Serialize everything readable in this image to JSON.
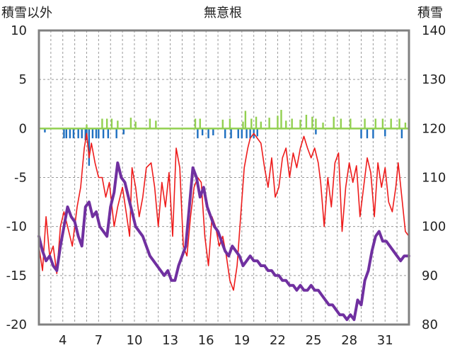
{
  "chart_data": {
    "type": "line",
    "title": "無意根",
    "y_left_label": "積雪以外",
    "y_right_label": "積雪",
    "y_left_range": [
      -20,
      10
    ],
    "y_right_range": [
      80,
      140
    ],
    "y_left_ticks": [
      "10",
      "5",
      "0",
      "-5",
      "-10",
      "-15",
      "-20"
    ],
    "y_right_ticks": [
      "140",
      "130",
      "120",
      "110",
      "100",
      "90",
      "80"
    ],
    "x_range": [
      2,
      33
    ],
    "x_ticks": [
      "4",
      "7",
      "10",
      "13",
      "16",
      "19",
      "22",
      "25",
      "28",
      "31"
    ],
    "grid": "dashed",
    "colors": {
      "temperature": "#ee1c1c",
      "snow_depth": "#7030a0",
      "positive_bars": "#92d050",
      "negative_bars": "#1e6fc0",
      "frame": "#808080"
    },
    "series": [
      {
        "axis": "left",
        "style": "thin-line",
        "values": [
          [
            2.0,
            -12
          ],
          [
            2.3,
            -14.5
          ],
          [
            2.6,
            -9
          ],
          [
            2.9,
            -13
          ],
          [
            3.2,
            -12
          ],
          [
            3.5,
            -14.8
          ],
          [
            3.8,
            -10
          ],
          [
            4.1,
            -8.5
          ],
          [
            4.5,
            -10.5
          ],
          [
            4.8,
            -12
          ],
          [
            5.2,
            -8
          ],
          [
            5.5,
            -6
          ],
          [
            5.8,
            -2
          ],
          [
            6.0,
            -0.5
          ],
          [
            6.2,
            -3
          ],
          [
            6.4,
            -1.5
          ],
          [
            6.7,
            -3.5
          ],
          [
            7.0,
            -5
          ],
          [
            7.3,
            -5
          ],
          [
            7.6,
            -7
          ],
          [
            7.9,
            -5.5
          ],
          [
            8.3,
            -10
          ],
          [
            8.6,
            -8
          ],
          [
            9.0,
            -6
          ],
          [
            9.3,
            -8.5
          ],
          [
            9.6,
            -11
          ],
          [
            9.8,
            -4
          ],
          [
            10.1,
            -6
          ],
          [
            10.4,
            -9
          ],
          [
            10.7,
            -7
          ],
          [
            11.0,
            -4
          ],
          [
            11.4,
            -3.5
          ],
          [
            11.7,
            -6
          ],
          [
            12.0,
            -10
          ],
          [
            12.3,
            -5.5
          ],
          [
            12.6,
            -8
          ],
          [
            12.9,
            -4.5
          ],
          [
            13.2,
            -11
          ],
          [
            13.5,
            -2
          ],
          [
            13.8,
            -4
          ],
          [
            14.1,
            -12
          ],
          [
            14.4,
            -13
          ],
          [
            14.7,
            -9
          ],
          [
            15.0,
            -6
          ],
          [
            15.3,
            -5
          ],
          [
            15.6,
            -5.5
          ],
          [
            15.9,
            -11
          ],
          [
            16.2,
            -14
          ],
          [
            16.5,
            -9
          ],
          [
            16.8,
            -10
          ],
          [
            17.1,
            -12
          ],
          [
            17.4,
            -11
          ],
          [
            17.7,
            -13
          ],
          [
            18.0,
            -15.5
          ],
          [
            18.3,
            -16.5
          ],
          [
            18.6,
            -14
          ],
          [
            18.9,
            -9
          ],
          [
            19.2,
            -4
          ],
          [
            19.5,
            -2
          ],
          [
            19.7,
            -1
          ],
          [
            20.0,
            -0.5
          ],
          [
            20.3,
            -1
          ],
          [
            20.6,
            -1.5
          ],
          [
            20.9,
            -4
          ],
          [
            21.2,
            -6
          ],
          [
            21.5,
            -3
          ],
          [
            21.8,
            -7
          ],
          [
            22.1,
            -6
          ],
          [
            22.4,
            -3
          ],
          [
            22.7,
            -2
          ],
          [
            23.0,
            -5
          ],
          [
            23.3,
            -2.5
          ],
          [
            23.6,
            -4
          ],
          [
            23.9,
            -2
          ],
          [
            24.2,
            -0.8
          ],
          [
            24.5,
            -2
          ],
          [
            24.8,
            -3
          ],
          [
            25.1,
            -2
          ],
          [
            25.4,
            -3.5
          ],
          [
            25.6,
            -5.5
          ],
          [
            25.9,
            -10
          ],
          [
            26.2,
            -5
          ],
          [
            26.5,
            -8
          ],
          [
            26.8,
            -3.5
          ],
          [
            27.1,
            -2.5
          ],
          [
            27.4,
            -10.5
          ],
          [
            27.7,
            -6
          ],
          [
            28.0,
            -3.5
          ],
          [
            28.3,
            -5.5
          ],
          [
            28.6,
            -3.8
          ],
          [
            28.9,
            -9
          ],
          [
            29.2,
            -6
          ],
          [
            29.5,
            -3
          ],
          [
            29.8,
            -4.5
          ],
          [
            30.1,
            -9
          ],
          [
            30.4,
            -3.5
          ],
          [
            30.7,
            -6
          ],
          [
            31.0,
            -4
          ],
          [
            31.3,
            -7.5
          ],
          [
            31.6,
            -8.5
          ],
          [
            31.9,
            -6
          ],
          [
            32.1,
            -3.5
          ],
          [
            32.4,
            -7
          ],
          [
            32.7,
            -10.5
          ],
          [
            33.0,
            -11
          ]
        ]
      },
      {
        "axis": "right",
        "style": "thick-line",
        "values": [
          [
            2.0,
            98
          ],
          [
            2.3,
            95
          ],
          [
            2.6,
            93
          ],
          [
            2.9,
            94
          ],
          [
            3.2,
            92
          ],
          [
            3.5,
            91
          ],
          [
            3.8,
            96
          ],
          [
            4.1,
            100
          ],
          [
            4.4,
            104
          ],
          [
            4.7,
            102
          ],
          [
            5.0,
            101
          ],
          [
            5.3,
            98
          ],
          [
            5.6,
            96
          ],
          [
            5.9,
            104
          ],
          [
            6.2,
            105
          ],
          [
            6.5,
            102
          ],
          [
            6.8,
            103
          ],
          [
            7.1,
            100
          ],
          [
            7.4,
            99
          ],
          [
            7.7,
            98
          ],
          [
            8.0,
            104
          ],
          [
            8.3,
            107
          ],
          [
            8.6,
            113
          ],
          [
            8.9,
            110
          ],
          [
            9.2,
            109
          ],
          [
            9.5,
            106
          ],
          [
            9.8,
            103
          ],
          [
            10.1,
            100
          ],
          [
            10.4,
            99
          ],
          [
            10.7,
            98
          ],
          [
            11.0,
            96
          ],
          [
            11.3,
            94
          ],
          [
            11.6,
            93
          ],
          [
            11.9,
            92
          ],
          [
            12.2,
            91
          ],
          [
            12.5,
            90
          ],
          [
            12.8,
            91
          ],
          [
            13.1,
            89
          ],
          [
            13.4,
            89
          ],
          [
            13.7,
            92
          ],
          [
            14.0,
            94
          ],
          [
            14.3,
            96
          ],
          [
            14.6,
            104
          ],
          [
            14.9,
            112
          ],
          [
            15.2,
            110
          ],
          [
            15.5,
            106
          ],
          [
            15.8,
            108
          ],
          [
            16.1,
            104
          ],
          [
            16.4,
            102
          ],
          [
            16.7,
            100
          ],
          [
            17.0,
            99
          ],
          [
            17.3,
            97
          ],
          [
            17.6,
            95
          ],
          [
            17.9,
            94
          ],
          [
            18.2,
            96
          ],
          [
            18.5,
            95
          ],
          [
            18.8,
            94
          ],
          [
            19.1,
            92
          ],
          [
            19.4,
            93
          ],
          [
            19.7,
            94
          ],
          [
            20.0,
            93
          ],
          [
            20.3,
            93
          ],
          [
            20.6,
            92
          ],
          [
            20.9,
            92
          ],
          [
            21.2,
            91
          ],
          [
            21.5,
            91
          ],
          [
            21.8,
            90
          ],
          [
            22.1,
            90
          ],
          [
            22.4,
            89
          ],
          [
            22.7,
            89
          ],
          [
            23.0,
            88
          ],
          [
            23.3,
            88
          ],
          [
            23.6,
            87
          ],
          [
            23.9,
            88
          ],
          [
            24.2,
            87
          ],
          [
            24.5,
            87
          ],
          [
            24.8,
            88
          ],
          [
            25.1,
            87
          ],
          [
            25.4,
            87
          ],
          [
            25.7,
            86
          ],
          [
            26.0,
            85
          ],
          [
            26.3,
            84
          ],
          [
            26.6,
            84
          ],
          [
            26.9,
            83
          ],
          [
            27.2,
            82
          ],
          [
            27.5,
            82
          ],
          [
            27.8,
            81
          ],
          [
            28.1,
            82
          ],
          [
            28.4,
            81
          ],
          [
            28.7,
            85
          ],
          [
            29.0,
            84
          ],
          [
            29.3,
            89
          ],
          [
            29.6,
            91
          ],
          [
            29.9,
            95
          ],
          [
            30.2,
            98
          ],
          [
            30.5,
            99
          ],
          [
            30.8,
            97
          ],
          [
            31.1,
            97
          ],
          [
            31.4,
            96
          ],
          [
            31.7,
            95
          ],
          [
            32.0,
            94
          ],
          [
            32.3,
            93
          ],
          [
            32.6,
            94
          ],
          [
            33.0,
            94
          ]
        ]
      },
      {
        "axis": "left",
        "style": "bars-up",
        "values": [
          [
            6.0,
            0.4
          ],
          [
            7.3,
            1.0
          ],
          [
            7.7,
            1.0
          ],
          [
            8.1,
            1.0
          ],
          [
            8.6,
            0.8
          ],
          [
            9.7,
            1.1
          ],
          [
            10.1,
            0.7
          ],
          [
            11.3,
            1.0
          ],
          [
            11.8,
            0.8
          ],
          [
            15.1,
            1.0
          ],
          [
            15.5,
            1.0
          ],
          [
            17.4,
            0.9
          ],
          [
            18.0,
            1.0
          ],
          [
            19.1,
            0.7
          ],
          [
            19.3,
            1.8
          ],
          [
            19.8,
            1.0
          ],
          [
            20.2,
            1.2
          ],
          [
            20.6,
            0.7
          ],
          [
            21.3,
            1.1
          ],
          [
            22.0,
            1.3
          ],
          [
            22.3,
            1.9
          ],
          [
            22.7,
            0.8
          ],
          [
            23.2,
            1.0
          ],
          [
            23.9,
            0.9
          ],
          [
            24.4,
            1.4
          ],
          [
            24.9,
            1.2
          ],
          [
            25.2,
            1.0
          ],
          [
            25.8,
            0.6
          ],
          [
            26.7,
            1.2
          ],
          [
            27.3,
            1.0
          ],
          [
            28.1,
            1.0
          ],
          [
            29.3,
            1.0
          ],
          [
            30.2,
            1.0
          ],
          [
            30.8,
            1.0
          ],
          [
            31.5,
            1.0
          ],
          [
            32.2,
            1.0
          ],
          [
            32.7,
            0.6
          ]
        ]
      },
      {
        "axis": "left",
        "style": "bars-down",
        "values": [
          [
            2.5,
            -0.4
          ],
          [
            4.1,
            -1.0
          ],
          [
            4.3,
            -1.0
          ],
          [
            4.6,
            -1.0
          ],
          [
            4.9,
            -1.0
          ],
          [
            5.3,
            -1.0
          ],
          [
            5.6,
            -1.0
          ],
          [
            5.9,
            -1.2
          ],
          [
            6.0,
            -1.2
          ],
          [
            6.2,
            -3.8
          ],
          [
            6.5,
            -1.0
          ],
          [
            6.8,
            -1.0
          ],
          [
            7.0,
            -1.0
          ],
          [
            7.4,
            -1.0
          ],
          [
            7.8,
            -1.0
          ],
          [
            8.5,
            -1.0
          ],
          [
            9.1,
            -0.6
          ],
          [
            15.3,
            -1.0
          ],
          [
            15.7,
            -0.7
          ],
          [
            16.2,
            -1.0
          ],
          [
            16.6,
            -0.7
          ],
          [
            17.6,
            -1.0
          ],
          [
            18.1,
            -1.0
          ],
          [
            18.7,
            -1.0
          ],
          [
            19.0,
            -1.0
          ],
          [
            19.4,
            -1.0
          ],
          [
            19.7,
            -1.0
          ],
          [
            20.0,
            -1.0
          ],
          [
            20.3,
            -0.8
          ],
          [
            25.2,
            -0.6
          ],
          [
            29.0,
            -1.0
          ],
          [
            29.5,
            -1.0
          ],
          [
            30.0,
            -1.0
          ],
          [
            31.0,
            -0.8
          ],
          [
            32.4,
            -1.0
          ]
        ]
      }
    ]
  }
}
